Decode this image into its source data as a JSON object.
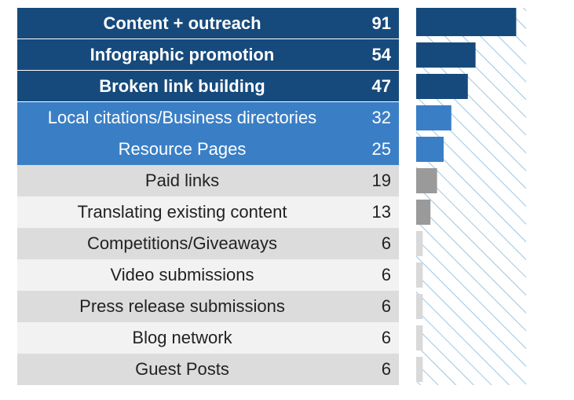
{
  "colors": {
    "dark": "#174a7c",
    "mid": "#3a7fc6",
    "grey_a": "#dcdcdc",
    "grey_b": "#f2f2f2",
    "bar_dark": "#174a7c",
    "bar_mid": "#3a7fc6",
    "bar_grey": "#9a9a9a",
    "bar_light": "#d9d9d9",
    "hatch": "#7ab3d9"
  },
  "chart_data": {
    "type": "bar",
    "orientation": "horizontal",
    "title": "",
    "xlabel": "",
    "ylabel": "",
    "xlim": [
      0,
      100
    ],
    "categories": [
      "Content + outreach",
      "Infographic promotion",
      "Broken link building",
      "Local citations/Business directories",
      "Resource Pages",
      "Paid links",
      "Translating existing content",
      "Competitions/Giveaways",
      "Video submissions",
      "Press release submissions",
      "Blog network",
      "Guest Posts"
    ],
    "values": [
      91,
      54,
      47,
      32,
      25,
      19,
      13,
      6,
      6,
      6,
      6,
      6
    ],
    "row_style": [
      "dark",
      "dark",
      "dark",
      "mid",
      "mid",
      "grey_a",
      "grey_b",
      "grey_a",
      "grey_b",
      "grey_a",
      "grey_b",
      "grey_a"
    ]
  }
}
